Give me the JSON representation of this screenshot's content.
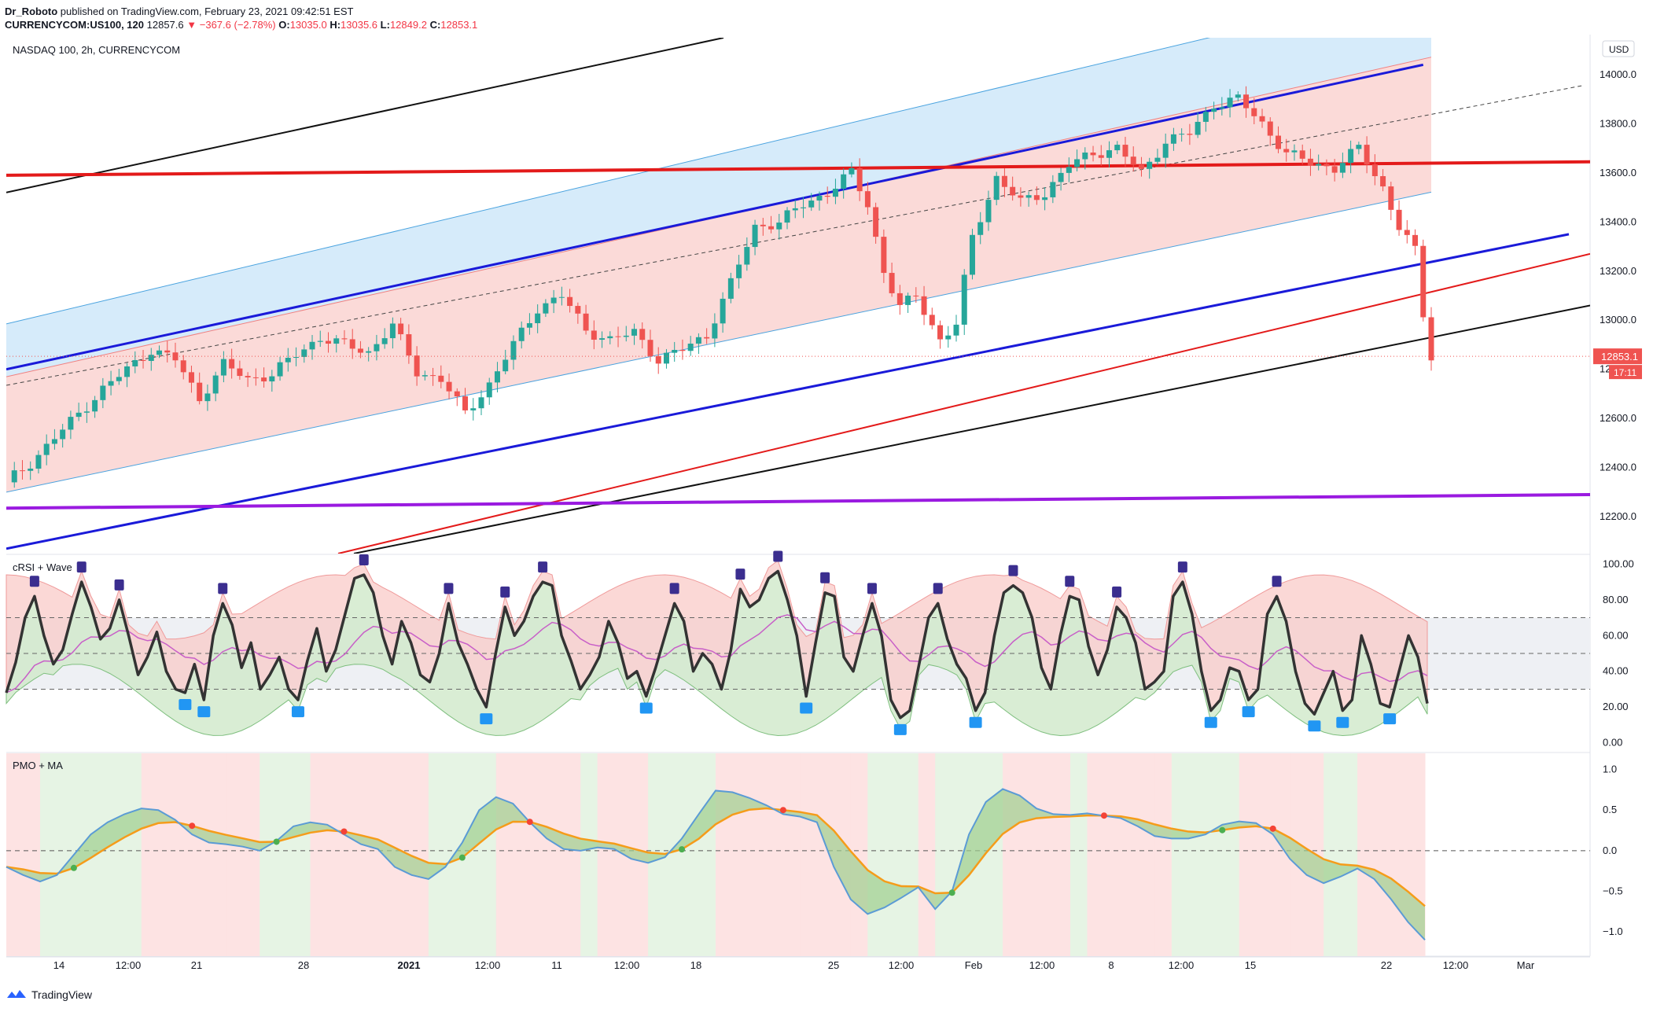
{
  "header": {
    "author": "Dr_Roboto",
    "published_text": "published on TradingView.com, February 23, 2021 09:42:51 EST",
    "symbol": "CURRENCYCOM:US100, 120",
    "last": "12857.6",
    "change": "−367.6 (−2.78%)",
    "open_label": "O:",
    "open": "13035.0",
    "high_label": "H:",
    "high": "13035.6",
    "low_label": "L:",
    "low": "12849.2",
    "close_label": "C:",
    "close": "12853.1"
  },
  "main_pane": {
    "title": "NASDAQ 100, 2h, CURRENCYCOM",
    "currency": "USD",
    "price_label": "12853.1",
    "countdown": "17:11"
  },
  "rsi_pane": {
    "title": "cRSI + Wave"
  },
  "pmo_pane": {
    "title": "PMO + MA"
  },
  "footer": {
    "brand": "TradingView"
  },
  "colors": {
    "bull": "#26a69a",
    "bear": "#ef5350",
    "channel_blue": "#1a1ad9",
    "red_line": "#e31a1a",
    "purple_line": "#9a1ae0",
    "blue_fill": "#d6ebfa",
    "pink_fill": "#fbdad8",
    "cr_line": "#333333",
    "ma_line": "#c85fc8",
    "pmo_orange": "#f59c1a",
    "pmo_blue": "#5b9bd5"
  },
  "chart_data": [
    {
      "type": "candlestick",
      "title": "NASDAQ 100, 2h, CURRENCYCOM",
      "ylabel": "USD",
      "ylim": [
        12050,
        14150
      ],
      "y_ticks": [
        12200.0,
        12400.0,
        12600.0,
        12800.0,
        13000.0,
        13200.0,
        13400.0,
        13600.0,
        13800.0,
        14000.0
      ],
      "x_tick_labels": [
        "14",
        "12:00",
        "21",
        "28",
        "2021",
        "12:00",
        "11",
        "12:00",
        "18",
        "25",
        "12:00",
        "Feb",
        "12:00",
        "8",
        "12:00",
        "15",
        "22",
        "12:00",
        "Mar"
      ],
      "close_path": [
        {
          "x": 0,
          "y": 12340
        },
        {
          "x": 3,
          "y": 12420
        },
        {
          "x": 6,
          "y": 12520
        },
        {
          "x": 9,
          "y": 12620
        },
        {
          "x": 12,
          "y": 12720
        },
        {
          "x": 15,
          "y": 12800
        },
        {
          "x": 18,
          "y": 12880
        },
        {
          "x": 21,
          "y": 12840
        },
        {
          "x": 24,
          "y": 12680
        },
        {
          "x": 27,
          "y": 12820
        },
        {
          "x": 30,
          "y": 12760
        },
        {
          "x": 33,
          "y": 12780
        },
        {
          "x": 36,
          "y": 12860
        },
        {
          "x": 39,
          "y": 12930
        },
        {
          "x": 42,
          "y": 12900
        },
        {
          "x": 45,
          "y": 12870
        },
        {
          "x": 48,
          "y": 12980
        },
        {
          "x": 51,
          "y": 12790
        },
        {
          "x": 54,
          "y": 12760
        },
        {
          "x": 57,
          "y": 12620
        },
        {
          "x": 60,
          "y": 12740
        },
        {
          "x": 63,
          "y": 12900
        },
        {
          "x": 66,
          "y": 13050
        },
        {
          "x": 69,
          "y": 13100
        },
        {
          "x": 72,
          "y": 12960
        },
        {
          "x": 75,
          "y": 12920
        },
        {
          "x": 78,
          "y": 12950
        },
        {
          "x": 81,
          "y": 12840
        },
        {
          "x": 84,
          "y": 12880
        },
        {
          "x": 87,
          "y": 12940
        },
        {
          "x": 90,
          "y": 13150
        },
        {
          "x": 93,
          "y": 13380
        },
        {
          "x": 96,
          "y": 13400
        },
        {
          "x": 99,
          "y": 13470
        },
        {
          "x": 102,
          "y": 13520
        },
        {
          "x": 105,
          "y": 13600
        },
        {
          "x": 107,
          "y": 13470
        },
        {
          "x": 109,
          "y": 13200
        },
        {
          "x": 111,
          "y": 13050
        },
        {
          "x": 113,
          "y": 13100
        },
        {
          "x": 116,
          "y": 12920
        },
        {
          "x": 118,
          "y": 12980
        },
        {
          "x": 120,
          "y": 13340
        },
        {
          "x": 123,
          "y": 13580
        },
        {
          "x": 126,
          "y": 13480
        },
        {
          "x": 129,
          "y": 13520
        },
        {
          "x": 132,
          "y": 13630
        },
        {
          "x": 135,
          "y": 13680
        },
        {
          "x": 138,
          "y": 13700
        },
        {
          "x": 141,
          "y": 13600
        },
        {
          "x": 144,
          "y": 13730
        },
        {
          "x": 147,
          "y": 13760
        },
        {
          "x": 150,
          "y": 13880
        },
        {
          "x": 153,
          "y": 13900
        },
        {
          "x": 156,
          "y": 13800
        },
        {
          "x": 159,
          "y": 13680
        },
        {
          "x": 162,
          "y": 13640
        },
        {
          "x": 165,
          "y": 13620
        },
        {
          "x": 168,
          "y": 13700
        },
        {
          "x": 171,
          "y": 13540
        },
        {
          "x": 173,
          "y": 13380
        },
        {
          "x": 175,
          "y": 13280
        },
        {
          "x": 176,
          "y": 13020
        },
        {
          "x": 177,
          "y": 12853
        }
      ]
    },
    {
      "type": "line",
      "title": "cRSI + Wave",
      "ylim": [
        -5,
        105
      ],
      "y_ticks": [
        0.0,
        20.0,
        40.0,
        60.0,
        80.0,
        100.0
      ],
      "levels": [
        30,
        50,
        70
      ],
      "series": [
        {
          "values": [
            28,
            45,
            70,
            82,
            60,
            44,
            52,
            72,
            90,
            76,
            58,
            64,
            80,
            60,
            38,
            48,
            62,
            40,
            30,
            28,
            44,
            24,
            60,
            78,
            66,
            42,
            56,
            30,
            38,
            48,
            30,
            24,
            46,
            64,
            40,
            52,
            72,
            92,
            94,
            84,
            60,
            44,
            68,
            56,
            38,
            34,
            50,
            78,
            56,
            44,
            30,
            20,
            50,
            76,
            60,
            68,
            82,
            90,
            88,
            60,
            46,
            30,
            38,
            48,
            68,
            56,
            36,
            40,
            26,
            42,
            60,
            78,
            68,
            40,
            50,
            44,
            30,
            52,
            86,
            76,
            80,
            92,
            96,
            80,
            60,
            26,
            56,
            84,
            82,
            48,
            40,
            60,
            78,
            60,
            24,
            14,
            18,
            44,
            70,
            78,
            58,
            44,
            36,
            18,
            28,
            60,
            84,
            88,
            84,
            70,
            42,
            30,
            60,
            82,
            80,
            54,
            38,
            52,
            76,
            70,
            56,
            30,
            34,
            40,
            82,
            90,
            72,
            40,
            18,
            24,
            42,
            40,
            24,
            30,
            72,
            82,
            68,
            40,
            22,
            16,
            28,
            40,
            18,
            24,
            60,
            44,
            22,
            20,
            40,
            60,
            48,
            22
          ]
        }
      ]
    },
    {
      "type": "line",
      "title": "PMO + MA",
      "ylim": [
        -1.3,
        1.2
      ],
      "y_ticks": [
        -1.0,
        -0.5,
        0.0,
        0.5,
        1.0
      ],
      "levels": [
        0
      ],
      "series": [
        {
          "values": [
            -0.2,
            -0.3,
            -0.38,
            -0.3,
            -0.05,
            0.2,
            0.35,
            0.45,
            0.52,
            0.5,
            0.38,
            0.2,
            0.1,
            0.08,
            0.05,
            0.0,
            0.12,
            0.3,
            0.35,
            0.32,
            0.2,
            0.08,
            0.02,
            -0.2,
            -0.3,
            -0.35,
            -0.2,
            0.1,
            0.5,
            0.66,
            0.58,
            0.35,
            0.15,
            0.02,
            0.0,
            0.04,
            0.02,
            -0.1,
            -0.15,
            -0.08,
            0.15,
            0.45,
            0.74,
            0.72,
            0.65,
            0.56,
            0.45,
            0.42,
            0.35,
            -0.2,
            -0.6,
            -0.78,
            -0.7,
            -0.58,
            -0.45,
            -0.72,
            -0.5,
            0.2,
            0.6,
            0.76,
            0.68,
            0.52,
            0.45,
            0.44,
            0.46,
            0.43,
            0.4,
            0.3,
            0.18,
            0.15,
            0.15,
            0.2,
            0.32,
            0.36,
            0.34,
            0.2,
            -0.1,
            -0.3,
            -0.4,
            -0.32,
            -0.22,
            -0.35,
            -0.6,
            -0.88,
            -1.1
          ]
        }
      ]
    }
  ]
}
